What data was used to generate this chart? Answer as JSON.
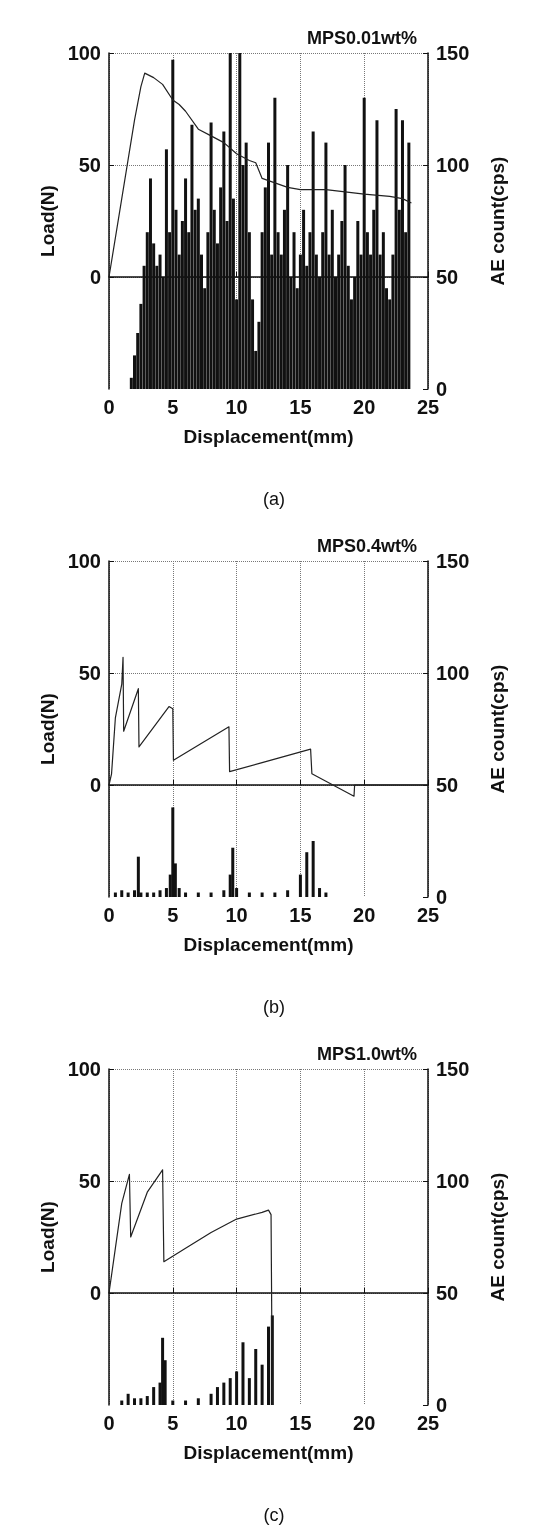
{
  "chart_data": [
    {
      "type": "line",
      "title": "MPS0.01wt%",
      "xlabel": "Displacement(mm)",
      "ylabel": "Load(N)",
      "y2label": "AE count(cps)",
      "annotations": [
        "(a)"
      ],
      "xlim": [
        0,
        25
      ],
      "xticks": [
        0,
        5,
        10,
        15,
        20,
        25
      ],
      "ylim": [
        -50,
        100
      ],
      "yticks": [
        0,
        50,
        100
      ],
      "y2lim": [
        0,
        150
      ],
      "y2ticks": [
        0,
        50,
        100,
        150
      ],
      "grid": true,
      "marker": "none",
      "line_style": "solid",
      "series": [
        {
          "type": "bar",
          "axis": "y2",
          "color": "#111111",
          "x": [
            1.5,
            1.75,
            2,
            2.25,
            2.5,
            2.75,
            3,
            3.25,
            3.5,
            3.75,
            4,
            4.25,
            4.5,
            4.75,
            5,
            5.25,
            5.5,
            5.75,
            6,
            6.25,
            6.5,
            6.75,
            7,
            7.25,
            7.5,
            7.75,
            8,
            8.25,
            8.5,
            8.75,
            9,
            9.25,
            9.5,
            9.75,
            10,
            10.25,
            10.5,
            10.75,
            11,
            11.25,
            11.5,
            11.75,
            12,
            12.25,
            12.5,
            12.75,
            13,
            13.25,
            13.5,
            13.75,
            14,
            14.25,
            14.5,
            14.75,
            15,
            15.25,
            15.5,
            15.75,
            16,
            16.25,
            16.5,
            16.75,
            17,
            17.25,
            17.5,
            17.75,
            18,
            18.25,
            18.5,
            18.75,
            19,
            19.25,
            19.5,
            19.75,
            20,
            20.25,
            20.5,
            20.75,
            21,
            21.25,
            21.5,
            21.75,
            22,
            22.25,
            22.5,
            22.75,
            23,
            23.25,
            23.5
          ],
          "values": [
            0,
            5,
            15,
            25,
            38,
            55,
            70,
            94,
            65,
            55,
            60,
            50,
            107,
            70,
            147,
            80,
            60,
            75,
            94,
            70,
            118,
            80,
            85,
            60,
            45,
            70,
            119,
            80,
            65,
            90,
            115,
            75,
            150,
            85,
            40,
            150,
            100,
            110,
            70,
            40,
            17,
            30,
            70,
            90,
            110,
            60,
            130,
            70,
            60,
            80,
            100,
            50,
            70,
            45,
            60,
            80,
            55,
            70,
            115,
            60,
            50,
            70,
            110,
            60,
            80,
            50,
            60,
            75,
            100,
            55,
            40,
            50,
            75,
            60,
            130,
            70,
            60,
            80,
            120,
            60,
            70,
            45,
            40,
            60,
            125,
            80,
            120,
            70,
            110
          ]
        },
        {
          "axis": "y",
          "color": "#222222",
          "x": [
            0,
            1,
            2,
            2.5,
            2.8,
            3.5,
            4.2,
            5,
            5.5,
            6,
            7,
            8,
            9,
            10,
            11,
            11.5,
            12,
            13,
            14,
            15,
            17,
            20,
            22,
            23,
            23.7
          ],
          "values": [
            0,
            35,
            70,
            85,
            91,
            89,
            86,
            79,
            77,
            74,
            66,
            63,
            60,
            55,
            52,
            51,
            44,
            42,
            40,
            39,
            39,
            37,
            36,
            35,
            33
          ]
        }
      ]
    },
    {
      "type": "line",
      "title": "MPS0.4wt%",
      "xlabel": "Displacement(mm)",
      "ylabel": "Load(N)",
      "y2label": "AE count(cps)",
      "annotations": [
        "(b)"
      ],
      "xlim": [
        0,
        25
      ],
      "xticks": [
        0,
        5,
        10,
        15,
        20,
        25
      ],
      "ylim": [
        -50,
        100
      ],
      "yticks": [
        0,
        50,
        100
      ],
      "y2lim": [
        0,
        150
      ],
      "y2ticks": [
        0,
        50,
        100,
        150
      ],
      "grid": true,
      "marker": "none",
      "line_style": "solid",
      "series": [
        {
          "type": "bar",
          "axis": "y2",
          "color": "#111111",
          "x": [
            0.5,
            1,
            1.5,
            2,
            2.3,
            2.5,
            3,
            3.5,
            4,
            4.5,
            4.8,
            5,
            5.2,
            5.5,
            6,
            7,
            8,
            9,
            9.5,
            9.7,
            10,
            11,
            12,
            13,
            14,
            15,
            15.5,
            16,
            16.5,
            17
          ],
          "values": [
            2,
            3,
            2,
            3,
            18,
            2,
            2,
            2,
            3,
            4,
            10,
            40,
            15,
            4,
            2,
            2,
            2,
            3,
            10,
            22,
            4,
            2,
            2,
            2,
            3,
            10,
            20,
            25,
            4,
            2
          ]
        },
        {
          "axis": "y",
          "color": "#222222",
          "x": [
            0,
            0.2,
            0.5,
            1,
            1.1,
            1.15,
            2.3,
            2.35,
            4.7,
            5,
            5.05,
            9.4,
            9.45,
            12,
            15.8,
            15.9,
            19.2,
            19.25,
            25
          ],
          "values": [
            0,
            5,
            30,
            45,
            57,
            24,
            43,
            17,
            35,
            34,
            11,
            26,
            6,
            10,
            16,
            5,
            -5,
            0,
            0
          ]
        }
      ]
    },
    {
      "type": "line",
      "title": "MPS1.0wt%",
      "xlabel": "Displacement(mm)",
      "ylabel": "Load(N)",
      "y2label": "AE count(cps)",
      "annotations": [
        "(c)"
      ],
      "xlim": [
        0,
        25
      ],
      "xticks": [
        0,
        5,
        10,
        15,
        20,
        25
      ],
      "ylim": [
        -50,
        100
      ],
      "yticks": [
        0,
        50,
        100
      ],
      "y2lim": [
        0,
        150
      ],
      "y2ticks": [
        0,
        50,
        100,
        150
      ],
      "grid": true,
      "marker": "none",
      "line_style": "solid",
      "series": [
        {
          "type": "bar",
          "axis": "y2",
          "color": "#111111",
          "x": [
            1,
            1.5,
            2,
            2.5,
            3,
            3.5,
            4,
            4.2,
            4.4,
            5,
            6,
            7,
            8,
            8.5,
            9,
            9.5,
            10,
            10.5,
            11,
            11.5,
            12,
            12.5,
            12.8
          ],
          "values": [
            2,
            5,
            3,
            3,
            4,
            8,
            10,
            30,
            20,
            2,
            2,
            3,
            5,
            8,
            10,
            12,
            15,
            28,
            12,
            25,
            18,
            35,
            40
          ]
        },
        {
          "axis": "y",
          "color": "#222222",
          "x": [
            0,
            0.5,
            1,
            1.6,
            1.7,
            3,
            4.2,
            4.3,
            6,
            8,
            10,
            12,
            12.5,
            12.7,
            12.8
          ],
          "values": [
            0,
            20,
            40,
            53,
            25,
            45,
            55,
            14,
            20,
            27,
            33,
            36,
            37,
            35,
            -50
          ]
        }
      ]
    }
  ]
}
